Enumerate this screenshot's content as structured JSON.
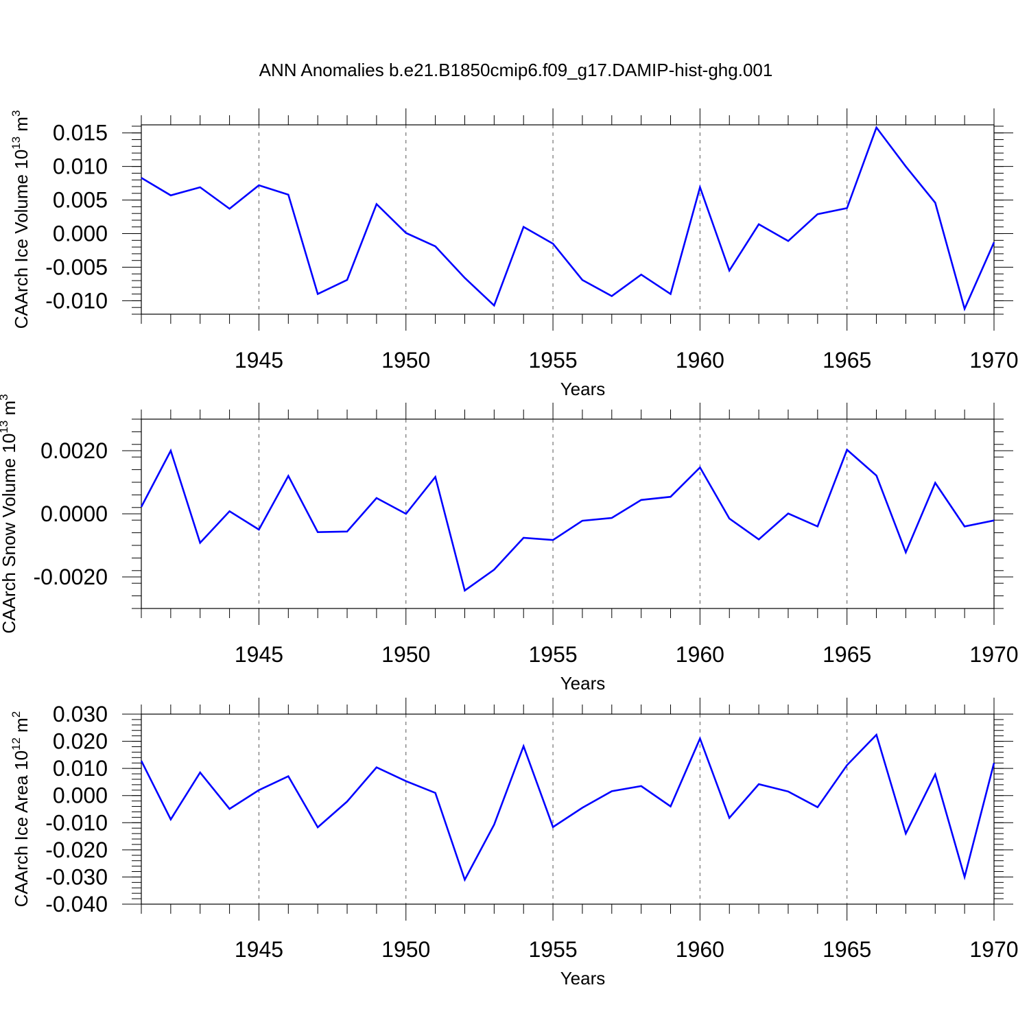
{
  "title": "ANN Anomalies b.e21.B1850cmip6.f09_g17.DAMIP-hist-ghg.001",
  "colors": {
    "line": "#0000ff",
    "axis": "#000000",
    "grid": "#555555",
    "background": "#ffffff"
  },
  "chart_data": [
    {
      "type": "line",
      "ylabel": "CAArch Ice Volume 10",
      "ylabel_exponent": "13",
      "ylabel_unit": "m",
      "ylabel_unit_exponent": "3",
      "xlabel": "Years",
      "xlim": [
        1941,
        1970
      ],
      "ylim": [
        -0.012,
        0.0162
      ],
      "xticks": [
        1945,
        1950,
        1955,
        1960,
        1965,
        1970
      ],
      "yticks": [
        0.015,
        0.01,
        0.005,
        0.0,
        -0.005,
        -0.01
      ],
      "ytick_labels": [
        "0.015",
        "0.010",
        "0.005",
        "0.000",
        "-0.005",
        "-0.010"
      ],
      "grid": "vertical dashed at major x ticks",
      "x": [
        1941,
        1942,
        1943,
        1944,
        1945,
        1946,
        1947,
        1948,
        1949,
        1950,
        1951,
        1952,
        1953,
        1954,
        1955,
        1956,
        1957,
        1958,
        1959,
        1960,
        1961,
        1962,
        1963,
        1964,
        1965,
        1966,
        1967,
        1968,
        1969,
        1970
      ],
      "series": [
        {
          "values": [
            0.0083,
            0.0057,
            0.0069,
            0.0037,
            0.0072,
            0.0058,
            -0.009,
            -0.0069,
            0.0044,
            0.0001,
            -0.0019,
            -0.0066,
            -0.0107,
            0.001,
            -0.0015,
            -0.0069,
            -0.0093,
            -0.0061,
            -0.009,
            0.0069,
            -0.0055,
            0.0014,
            -0.0011,
            0.0029,
            0.0038,
            0.0158,
            0.01,
            0.0046,
            -0.0112,
            -0.0013
          ]
        }
      ]
    },
    {
      "type": "line",
      "ylabel": "CAArch Snow Volume 10",
      "ylabel_exponent": "13",
      "ylabel_unit": "m",
      "ylabel_unit_exponent": "3",
      "xlabel": "Years",
      "xlim": [
        1941,
        1970
      ],
      "ylim": [
        -0.003,
        0.003
      ],
      "xticks": [
        1945,
        1950,
        1955,
        1960,
        1965,
        1970
      ],
      "yticks": [
        0.002,
        0.0,
        -0.002
      ],
      "ytick_labels": [
        "0.0020",
        "0.0000",
        "-0.0020"
      ],
      "grid": "vertical dashed at major x ticks",
      "x": [
        1941,
        1942,
        1943,
        1944,
        1945,
        1946,
        1947,
        1948,
        1949,
        1950,
        1951,
        1952,
        1953,
        1954,
        1955,
        1956,
        1957,
        1958,
        1959,
        1960,
        1961,
        1962,
        1963,
        1964,
        1965,
        1966,
        1967,
        1968,
        1969,
        1970
      ],
      "series": [
        {
          "values": [
            0.00022,
            0.002,
            -0.00092,
            8e-05,
            -0.0005,
            0.0012,
            -0.00058,
            -0.00056,
            0.0005,
            0.0,
            0.00117,
            -0.00243,
            -0.00177,
            -0.00076,
            -0.00083,
            -0.00022,
            -0.00013,
            0.00044,
            0.00054,
            0.00147,
            -0.00015,
            -0.00081,
            1e-05,
            -0.0004,
            0.00203,
            0.00121,
            -0.00122,
            0.00098,
            -0.0004,
            -0.00021
          ]
        }
      ]
    },
    {
      "type": "line",
      "ylabel": "CAArch Ice Area 10",
      "ylabel_exponent": "12",
      "ylabel_unit": "m",
      "ylabel_unit_exponent": "2",
      "xlabel": "Years",
      "xlim": [
        1941,
        1970
      ],
      "ylim": [
        -0.04,
        0.03
      ],
      "xticks": [
        1945,
        1950,
        1955,
        1960,
        1965,
        1970
      ],
      "yticks": [
        0.03,
        0.02,
        0.01,
        0.0,
        -0.01,
        -0.02,
        -0.03,
        -0.04
      ],
      "ytick_labels": [
        "0.030",
        "0.020",
        "0.010",
        "0.000",
        "-0.010",
        "-0.020",
        "-0.030",
        "-0.040"
      ],
      "grid": "vertical dashed at major x ticks",
      "x": [
        1941,
        1942,
        1943,
        1944,
        1945,
        1946,
        1947,
        1948,
        1949,
        1950,
        1951,
        1952,
        1953,
        1954,
        1955,
        1956,
        1957,
        1958,
        1959,
        1960,
        1961,
        1962,
        1963,
        1964,
        1965,
        1966,
        1967,
        1968,
        1969,
        1970
      ],
      "series": [
        {
          "values": [
            0.0128,
            -0.0088,
            0.0085,
            -0.0049,
            0.002,
            0.0071,
            -0.0117,
            -0.0022,
            0.0104,
            0.0053,
            0.001,
            -0.031,
            -0.0107,
            0.0182,
            -0.0116,
            -0.0045,
            0.0016,
            0.0035,
            -0.004,
            0.021,
            -0.0082,
            0.0042,
            0.0015,
            -0.0043,
            0.0112,
            0.0224,
            -0.014,
            0.0078,
            -0.03,
            0.012
          ]
        }
      ]
    }
  ]
}
